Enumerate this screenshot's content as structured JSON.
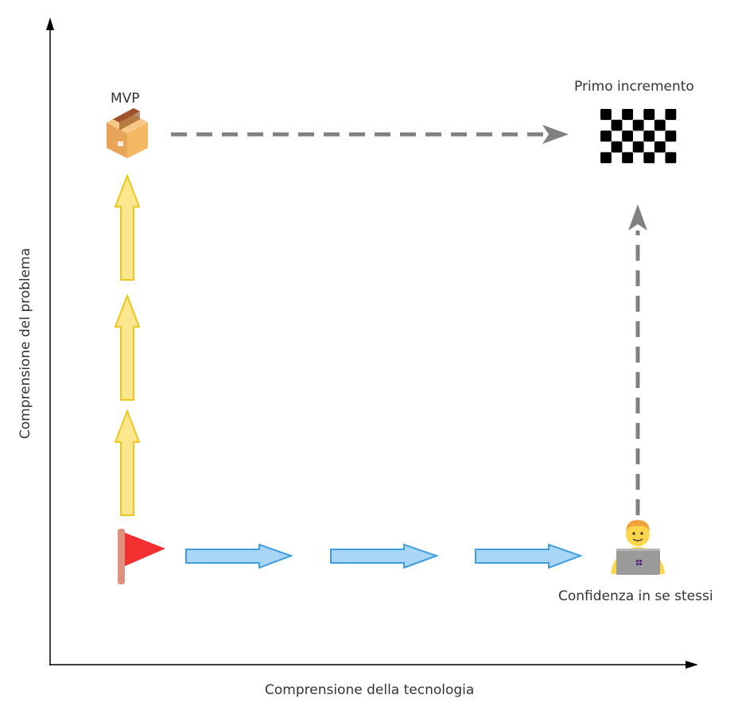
{
  "axes": {
    "x_label": "Comprensione della tecnologia",
    "y_label": "Comprensione del problema"
  },
  "nodes": {
    "start": {
      "icon": "red-flag-icon"
    },
    "mvp": {
      "label": "MVP",
      "icon": "package-box-icon"
    },
    "goal": {
      "label": "Primo incremento",
      "icon": "checkered-flag-icon"
    },
    "developer": {
      "label": "Confidenza in se stessi",
      "icon": "developer-laptop-icon"
    }
  },
  "connectors": {
    "yellow_arrow_count": 3,
    "blue_arrow_count": 3,
    "dashed_arrows": [
      "mvp-to-goal",
      "developer-to-goal"
    ]
  },
  "colors": {
    "yellow_fill": "#fce78f",
    "yellow_stroke": "#f0c419",
    "blue_fill": "#a9d6f5",
    "blue_stroke": "#3c9ee0",
    "dash": "#808080",
    "flag_red": "#f23030",
    "flag_pole": "#e0907f",
    "axis": "#000000"
  }
}
